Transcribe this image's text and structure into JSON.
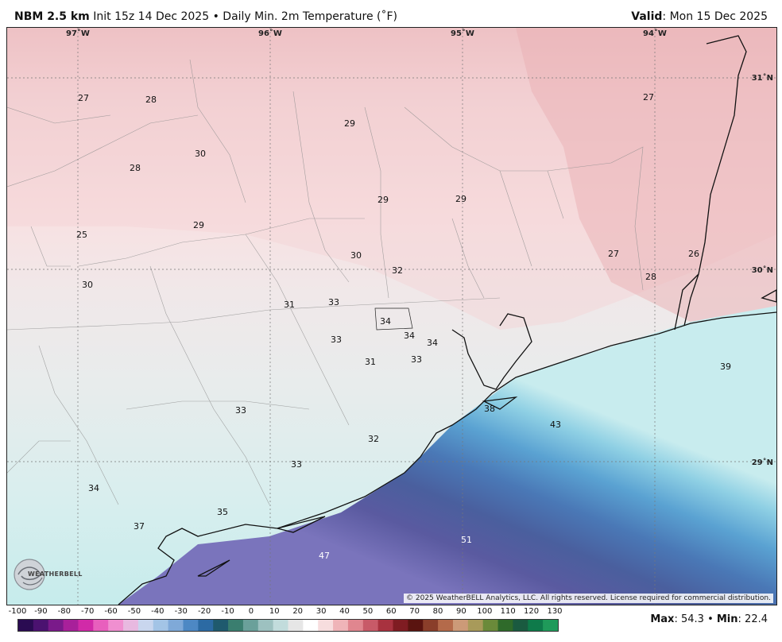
{
  "header": {
    "model": "NBM 2.5 km",
    "init": "Init 15z 14 Dec 2025",
    "bullet": "•",
    "product": "Daily Min. 2m Temperature (˚F)",
    "valid_label": "Valid",
    "valid_value": ": Mon 15 Dec 2025"
  },
  "map": {
    "lon_labels": [
      "97˚W",
      "96˚W",
      "95˚W",
      "94˚W"
    ],
    "lat_labels": [
      "31˚N",
      "30˚N",
      "29˚N"
    ],
    "point_values": [
      "27",
      "28",
      "29",
      "30",
      "28",
      "29",
      "29",
      "27",
      "25",
      "29",
      "30",
      "27",
      "26",
      "28",
      "32",
      "30",
      "31",
      "33",
      "34",
      "34",
      "34",
      "33",
      "33",
      "31",
      "39",
      "33",
      "38",
      "43",
      "32",
      "33",
      "34",
      "35",
      "37",
      "47",
      "51"
    ],
    "copyright": "© 2025 WeatherBELL Analytics, LLC. All rights reserved. License required for commercial distribution.",
    "logo_text": "WEATHERBELL"
  },
  "colorbar": {
    "ticks": [
      "-100",
      "-90",
      "-80",
      "-70",
      "-60",
      "-50",
      "-40",
      "-30",
      "-20",
      "-10",
      "0",
      "10",
      "20",
      "30",
      "40",
      "50",
      "60",
      "70",
      "80",
      "90",
      "100",
      "110",
      "120",
      "130"
    ],
    "colors": [
      "#2a0b52",
      "#4b1270",
      "#7a1a8a",
      "#a8209a",
      "#d12aa8",
      "#e85fbd",
      "#f08fd0",
      "#e8b9e0",
      "#c9d6ee",
      "#a3c4e6",
      "#7fa9d8",
      "#4d88c4",
      "#2c6aa3",
      "#1f5a6e",
      "#3a7e6f",
      "#6aa09a",
      "#9dc1c0",
      "#c2dcdc",
      "#e6e6e6",
      "#ffffff",
      "#f7ddde",
      "#efb4b8",
      "#e0868f",
      "#c85a68",
      "#a8323f",
      "#7f1c22",
      "#5a1410",
      "#8a3e2a",
      "#b46a4a",
      "#cc9a78",
      "#a89a5a",
      "#6a8a3a",
      "#2f6a2a",
      "#1a5a40",
      "#0e7a4a",
      "#1f9a5a"
    ],
    "max_label": "Max",
    "max_value": ": 54.3",
    "min_label": "Min",
    "min_value": ": 22.4"
  }
}
